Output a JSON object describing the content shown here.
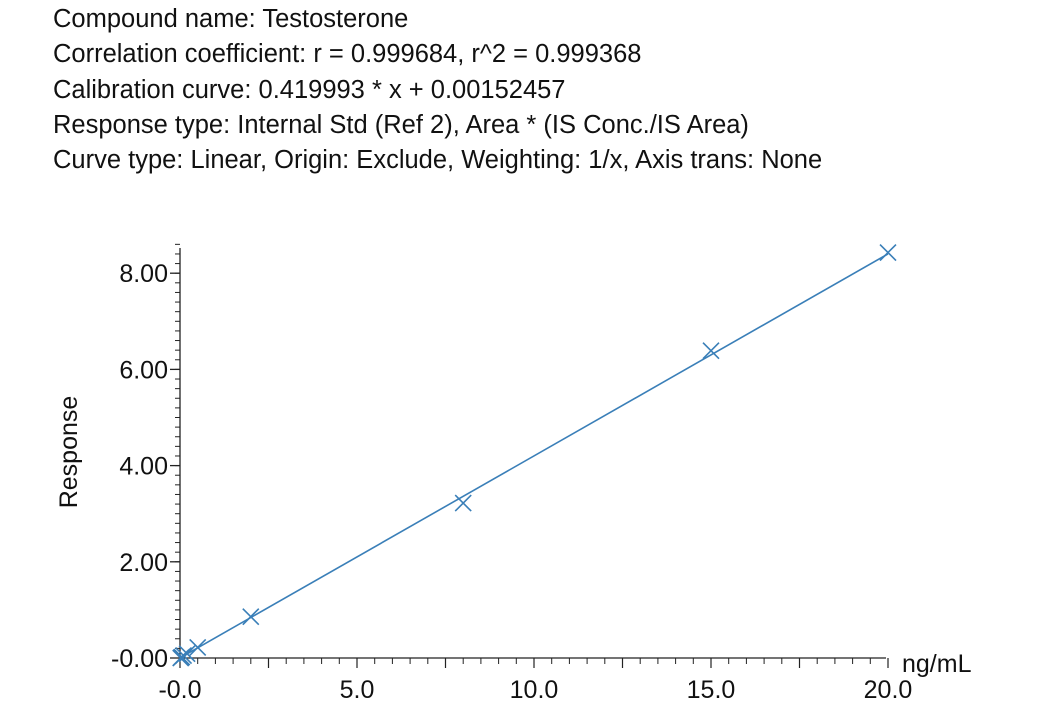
{
  "header": {
    "compound_line": "Compound name: Testosterone",
    "correlation_line": "Correlation coefficient: r = 0.999684, r^2 = 0.999368",
    "calibration_line": "Calibration curve: 0.419993 * x + 0.00152457",
    "response_type_line": "Response type: Internal Std (Ref 2), Area * (IS Conc./IS Area)",
    "curve_type_line": "Curve type: Linear, Origin: Exclude, Weighting: 1/x, Axis trans: None"
  },
  "chart_data": {
    "type": "scatter",
    "title": "",
    "xlabel": "ng/mL",
    "ylabel": "Response",
    "xlim": [
      0,
      20
    ],
    "ylim": [
      0,
      8.6
    ],
    "x_ticks": [
      0,
      5,
      10,
      15,
      20
    ],
    "x_tick_labels": [
      "-0.0",
      "5.0",
      "10.0",
      "15.0",
      "20.0"
    ],
    "y_ticks": [
      0,
      2,
      4,
      6,
      8
    ],
    "y_tick_labels": [
      "-0.00",
      "2.00",
      "4.00",
      "6.00",
      "8.00"
    ],
    "grid": false,
    "legend": "none",
    "marker": "x",
    "color": "#3a7fb8",
    "series": [
      {
        "points": [
          {
            "x": 0.02,
            "y": 0.0
          },
          {
            "x": 0.05,
            "y": 0.02
          },
          {
            "x": 0.1,
            "y": 0.05
          },
          {
            "x": 0.2,
            "y": 0.09
          },
          {
            "x": 0.5,
            "y": 0.22
          },
          {
            "x": 2.0,
            "y": 0.86
          },
          {
            "x": 8.0,
            "y": 3.22
          },
          {
            "x": 15.0,
            "y": 6.39
          },
          {
            "x": 20.0,
            "y": 8.43
          }
        ]
      }
    ],
    "fit_line": {
      "slope": 0.419993,
      "intercept": 0.00152457,
      "x_range": [
        0,
        20
      ]
    }
  }
}
